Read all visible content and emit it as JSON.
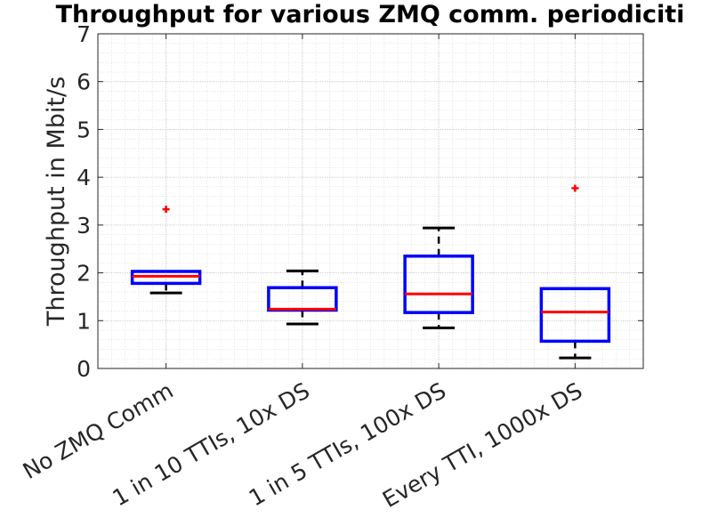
{
  "chart_data": {
    "type": "box",
    "title": "Throughput for various ZMQ comm. periodiciti",
    "xlabel": "",
    "ylabel": "Throughput in Mbit/s",
    "ylim": [
      0,
      7
    ],
    "yticks": [
      "0",
      "1",
      "2",
      "3",
      "4",
      "5",
      "6",
      "7"
    ],
    "grid": true,
    "minor_grid": true,
    "categories": [
      "No ZMQ Comm",
      "1 in 10 TTIs, 10x DS",
      "1 in 5 TTIs, 100x DS",
      "Every TTI, 1000x DS"
    ],
    "boxes": [
      {
        "category": "No ZMQ Comm",
        "whisker_low": 1.58,
        "q1": 1.78,
        "median": 1.93,
        "q3": 2.03,
        "whisker_high": 2.03,
        "outliers": [
          3.33
        ]
      },
      {
        "category": "1 in 10 TTIs, 10x DS",
        "whisker_low": 0.93,
        "q1": 1.22,
        "median": 1.24,
        "q3": 1.69,
        "whisker_high": 2.04,
        "outliers": []
      },
      {
        "category": "1 in 5 TTIs, 100x DS",
        "whisker_low": 0.85,
        "q1": 1.17,
        "median": 1.56,
        "q3": 2.35,
        "whisker_high": 2.94,
        "outliers": []
      },
      {
        "category": "Every TTI, 1000x DS",
        "whisker_low": 0.22,
        "q1": 0.57,
        "median": 1.18,
        "q3": 1.67,
        "whisker_high": 1.67,
        "outliers": [
          3.77
        ]
      }
    ],
    "colors": {
      "box": "#0000ff",
      "median": "#ff0000",
      "whisker": "#000000",
      "outlier": "#ff0000",
      "axis": "#262626",
      "grid": "#dfdfdf"
    }
  }
}
